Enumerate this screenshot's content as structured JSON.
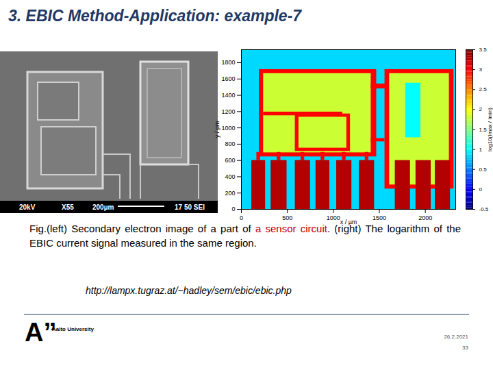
{
  "header": {
    "title": "3. EBIC Method-Application: example-7"
  },
  "sem_image": {
    "info_bar": [
      "20kV",
      "X55",
      "200µm",
      "17 50 SEI"
    ]
  },
  "chart_data": {
    "type": "heatmap",
    "xlabel": "x / µm",
    "ylabel": "y / µm",
    "xlim": [
      0,
      2330
    ],
    "ylim": [
      0,
      1960
    ],
    "xticks": [
      0,
      500,
      1000,
      1500,
      2000
    ],
    "yticks": [
      0,
      200,
      400,
      600,
      800,
      1000,
      1200,
      1400,
      1600,
      1800
    ],
    "cells": [
      {
        "x1": 0,
        "x2": 2330,
        "y1": 0,
        "y2": 1960,
        "value": 0.85
      },
      {
        "x1": 195,
        "x2": 1470,
        "y1": 645,
        "y2": 1717,
        "value": 3.0
      },
      {
        "x1": 240,
        "x2": 1410,
        "y1": 695,
        "y2": 1667,
        "value": 1.8
      },
      {
        "x1": 240,
        "x2": 1100,
        "y1": 1150,
        "y2": 1195,
        "value": 3.0
      },
      {
        "x1": 585,
        "x2": 1185,
        "y1": 712,
        "y2": 1172,
        "value": 3.0
      },
      {
        "x1": 625,
        "x2": 1145,
        "y1": 752,
        "y2": 1132,
        "value": 1.8
      },
      {
        "x1": 1410,
        "x2": 1710,
        "y1": 1480,
        "y2": 1540,
        "value": 3.0
      },
      {
        "x1": 1410,
        "x2": 1560,
        "y1": 830,
        "y2": 870,
        "value": 3.0
      },
      {
        "x1": 1560,
        "x2": 2310,
        "y1": 250,
        "y2": 1717,
        "value": 3.0
      },
      {
        "x1": 1610,
        "x2": 2260,
        "y1": 300,
        "y2": 1667,
        "value": 1.8
      },
      {
        "x1": 1785,
        "x2": 1950,
        "y1": 880,
        "y2": 1550,
        "value": 1.0
      },
      {
        "x1": 167,
        "x2": 207,
        "y1": 600,
        "y2": 700,
        "value": 3.0
      },
      {
        "x1": 388,
        "x2": 428,
        "y1": 600,
        "y2": 700,
        "value": 3.0
      },
      {
        "x1": 647,
        "x2": 687,
        "y1": 600,
        "y2": 700,
        "value": 3.0
      },
      {
        "x1": 865,
        "x2": 905,
        "y1": 600,
        "y2": 700,
        "value": 3.0
      },
      {
        "x1": 1097,
        "x2": 1137,
        "y1": 600,
        "y2": 700,
        "value": 3.0
      },
      {
        "x1": 1345,
        "x2": 1385,
        "y1": 600,
        "y2": 700,
        "value": 3.0
      },
      {
        "x1": 112,
        "x2": 262,
        "y1": 0,
        "y2": 600,
        "value": 3.3
      },
      {
        "x1": 322,
        "x2": 495,
        "y1": 0,
        "y2": 600,
        "value": 3.3
      },
      {
        "x1": 585,
        "x2": 750,
        "y1": 0,
        "y2": 600,
        "value": 3.3
      },
      {
        "x1": 810,
        "x2": 960,
        "y1": 0,
        "y2": 600,
        "value": 3.3
      },
      {
        "x1": 1035,
        "x2": 1200,
        "y1": 0,
        "y2": 600,
        "value": 3.3
      },
      {
        "x1": 1283,
        "x2": 1447,
        "y1": 0,
        "y2": 600,
        "value": 3.3
      },
      {
        "x1": 1672,
        "x2": 1837,
        "y1": 0,
        "y2": 600,
        "value": 3.3
      },
      {
        "x1": 1897,
        "x2": 2062,
        "y1": 0,
        "y2": 600,
        "value": 3.3
      },
      {
        "x1": 2107,
        "x2": 2272,
        "y1": 0,
        "y2": 600,
        "value": 3.3
      }
    ],
    "colorbar": {
      "range": [
        -0.5,
        3.5
      ],
      "ticks": [
        -0.5,
        0,
        0.5,
        1,
        1.5,
        2,
        2.5,
        3,
        3.5
      ],
      "label": "log10(Imax / Imin)"
    }
  },
  "caption": [
    {
      "text": "Fig.(left) Secondary electron image of a part of "
    },
    {
      "text": "a sensor circuit",
      "color": "#c00000"
    },
    {
      "text": ". (right) The logarithm of the EBIC current signal measured in the same region."
    }
  ],
  "link": "http://lampx.tugraz.at/~hadley/sem/ebic/ebic.php",
  "footer": {
    "logo": "A”",
    "organization": "Aalto University",
    "date": "26.2.2021",
    "page": "33"
  }
}
